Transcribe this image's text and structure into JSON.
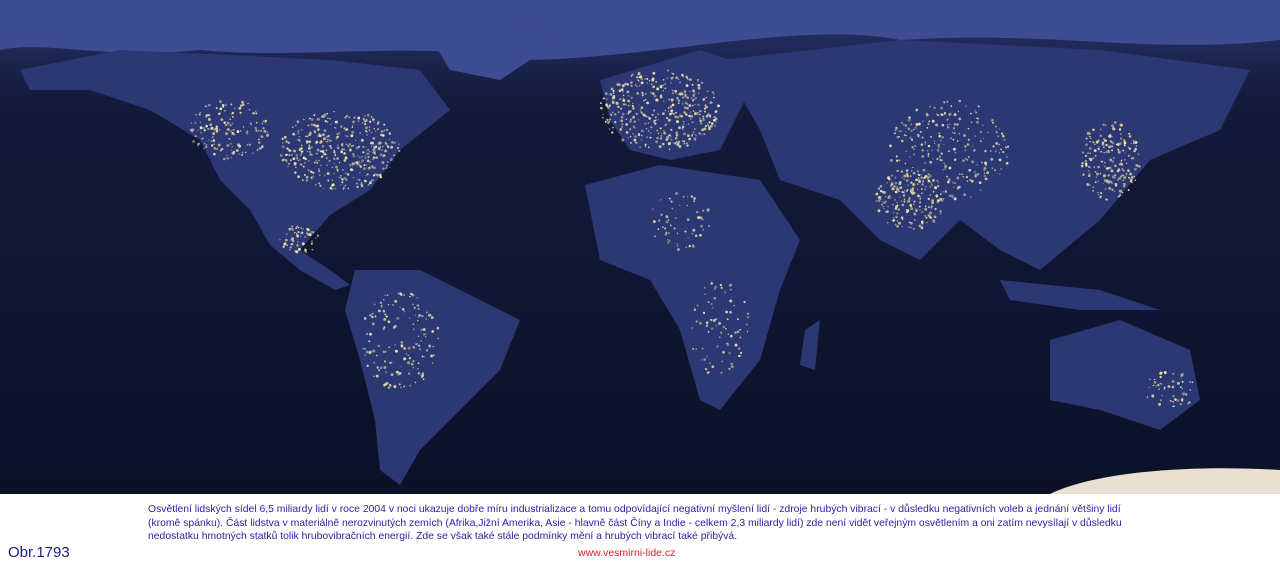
{
  "figure": {
    "label": "Obr.1793",
    "caption_lines": [
      "Osvětlení lidských sídel 6,5 miliardy lidí v roce 2004 v noci ukazuje dobře míru industrializace a tomu odpovídající negativní myšlení lidí - zdroje hrubých vibrací - v důsledku negativních voleb a jednání většiny lidí",
      "(kromě spánku). Část lidstva v materiálně nerozvinutých zemích (Afrika,Jižní Amerika, Asie - hlavně část Číny a Indie - celkem 2,3 miliardy lidí) zde není vidět veřejným osvětlením a oni zatím nevysílají v důsledku",
      "nedostatku hmotných statků tolik hrubovibračních energií. Zde se však také stále podmínky mění a hrubých vibrací také přibývá."
    ],
    "website": "www.vesmirni-lide.cz"
  },
  "map": {
    "subject": "world-at-night",
    "colors": {
      "ocean": "#111833",
      "land": "#2c3a78",
      "lights": "#f5e6a8",
      "ice": "#4a5aa0"
    }
  }
}
